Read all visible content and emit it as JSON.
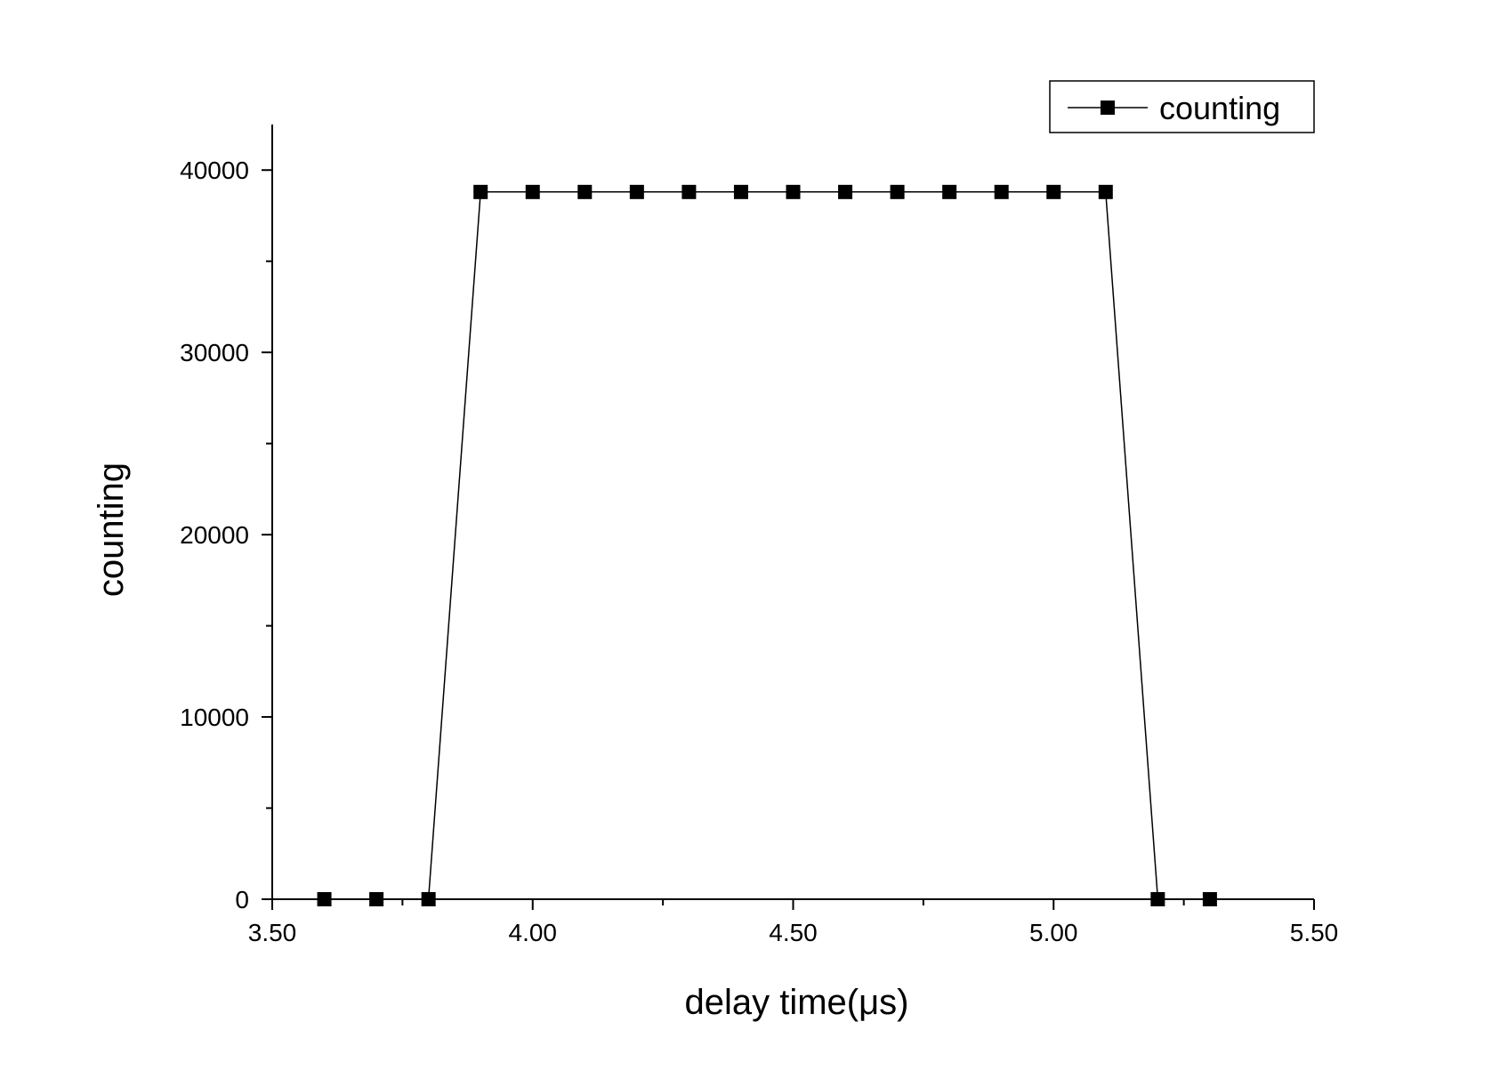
{
  "chart_data": {
    "type": "line",
    "xlabel": "delay time(μs)",
    "ylabel": "counting",
    "xlim": [
      3.5,
      5.5
    ],
    "ylim": [
      0,
      42500
    ],
    "x_ticks": [
      "3.50",
      "4.00",
      "4.50",
      "5.00",
      "5.50"
    ],
    "y_ticks": [
      "0",
      "10000",
      "20000",
      "30000",
      "40000"
    ],
    "grid": false,
    "legend_position": "top-right",
    "marker": "square",
    "color": "#000000",
    "series": [
      {
        "name": "counting",
        "x": [
          3.6,
          3.7,
          3.8,
          3.9,
          4.0,
          4.1,
          4.2,
          4.3,
          4.4,
          4.5,
          4.6,
          4.7,
          4.8,
          4.9,
          5.0,
          5.1,
          5.2,
          5.3
        ],
        "y": [
          0,
          0,
          0,
          38800,
          38800,
          38800,
          38800,
          38800,
          38800,
          38800,
          38800,
          38800,
          38800,
          38800,
          38800,
          38800,
          0,
          0
        ]
      }
    ]
  }
}
